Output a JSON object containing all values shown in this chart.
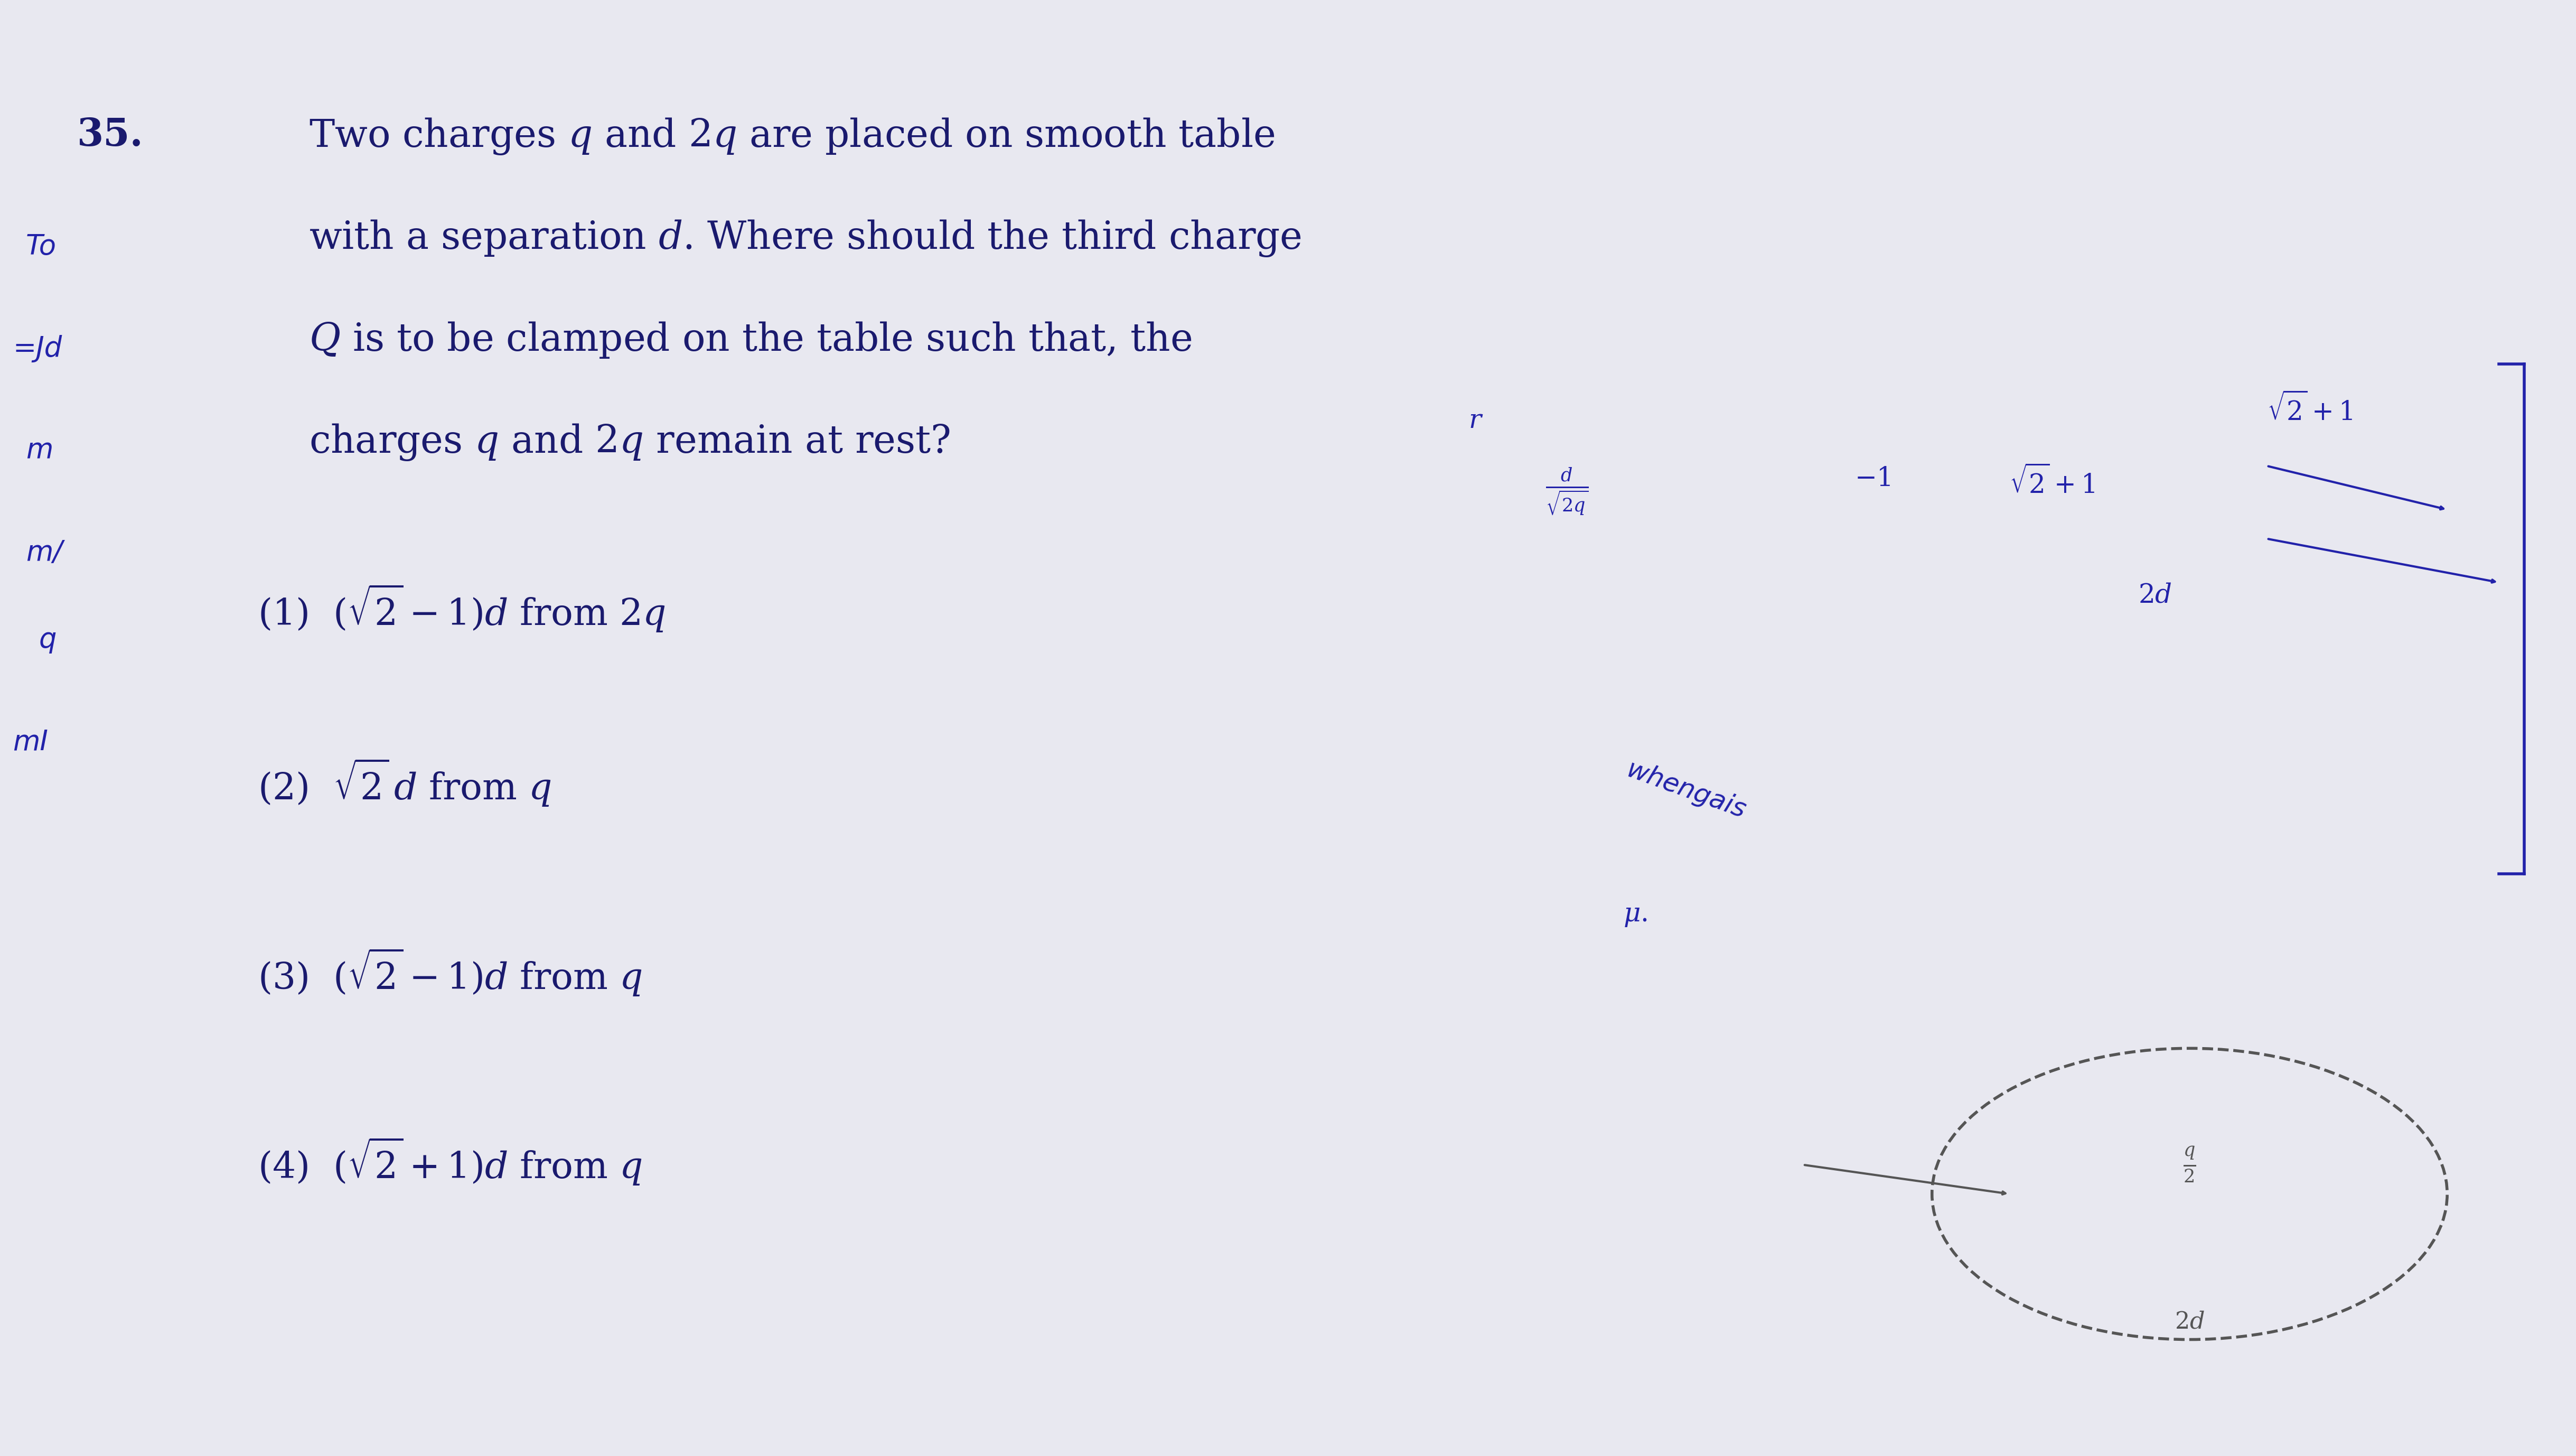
{
  "background_color": "#e8e8f0",
  "title": "",
  "question_number": "35.",
  "question_text_lines": [
    "Two charges $q$ and $2q$ are placed on smooth table",
    "with a separation $d$. Where should the third charge",
    "$Q$ is to be clamped on the table such that, the",
    "charges $q$ and $2q$ remain at rest?"
  ],
  "options": [
    "(1)  $( \\sqrt{2} - 1)d$ from $2q$",
    "(2)  $\\sqrt{2}\\, d$ from $q$",
    "(3)  $(\\sqrt{2} - 1)d$ from $q$",
    "(4)  $(\\sqrt{2} + 1)d$ from $q$"
  ],
  "text_color": "#1a1a6e",
  "handwriting_color": "#2222aa",
  "font_size_question": 52,
  "font_size_options": 50,
  "fig_width": 48.77,
  "fig_height": 27.56
}
